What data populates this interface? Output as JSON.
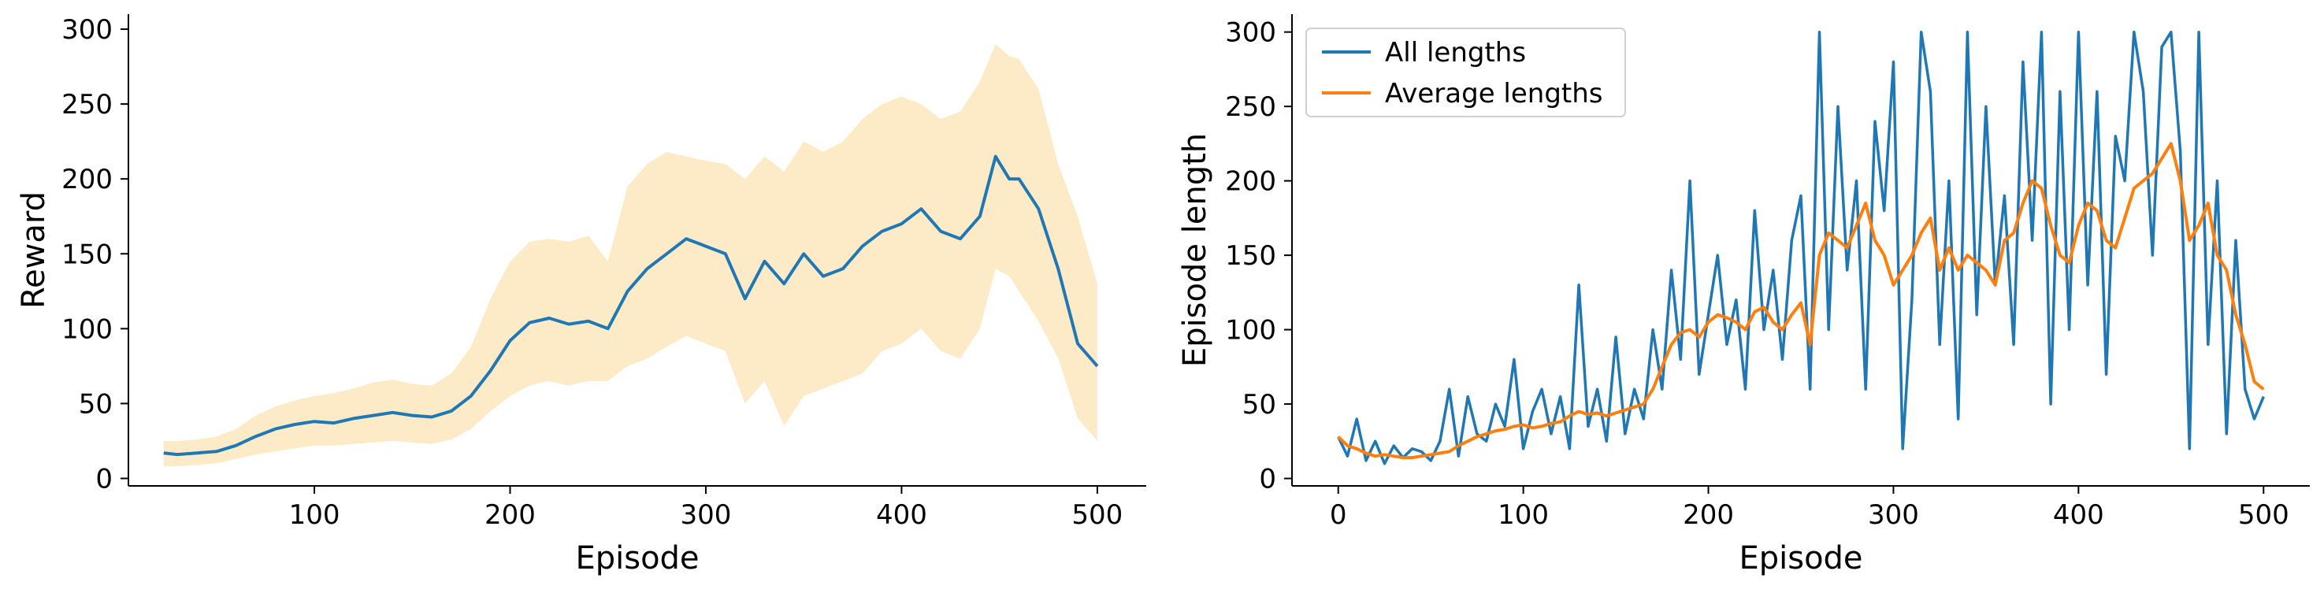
{
  "chart_data": [
    {
      "type": "line",
      "xlabel": "Episode",
      "ylabel": "Reward",
      "xlim": [
        5,
        525
      ],
      "ylim": [
        -5,
        310
      ],
      "xticks": [
        100,
        200,
        300,
        400,
        500
      ],
      "yticks": [
        0,
        50,
        100,
        150,
        200,
        250,
        300
      ],
      "grid": false,
      "colors": {
        "line": "#1f77b4",
        "band": "#fdebc8"
      },
      "x": [
        23,
        30,
        40,
        50,
        60,
        70,
        80,
        90,
        100,
        110,
        120,
        130,
        140,
        150,
        160,
        170,
        180,
        190,
        200,
        210,
        220,
        230,
        240,
        250,
        260,
        270,
        280,
        290,
        300,
        310,
        320,
        330,
        340,
        350,
        360,
        370,
        380,
        390,
        400,
        410,
        420,
        430,
        440,
        448,
        455,
        460,
        470,
        480,
        490,
        500
      ],
      "series": [
        {
          "kind": "mean",
          "values": [
            17,
            16,
            17,
            18,
            22,
            28,
            33,
            36,
            38,
            37,
            40,
            42,
            44,
            42,
            41,
            45,
            55,
            72,
            92,
            104,
            107,
            103,
            105,
            100,
            125,
            140,
            150,
            160,
            155,
            150,
            120,
            145,
            130,
            150,
            135,
            140,
            155,
            165,
            170,
            180,
            165,
            160,
            175,
            215,
            200,
            200,
            180,
            140,
            90,
            75
          ]
        },
        {
          "kind": "band_upper",
          "values": [
            25,
            25,
            26,
            28,
            33,
            42,
            48,
            52,
            55,
            57,
            60,
            64,
            66,
            63,
            62,
            70,
            88,
            120,
            145,
            158,
            160,
            158,
            162,
            145,
            195,
            210,
            218,
            215,
            212,
            210,
            200,
            215,
            205,
            225,
            218,
            225,
            240,
            250,
            255,
            250,
            240,
            245,
            265,
            290,
            282,
            280,
            260,
            210,
            175,
            130
          ]
        },
        {
          "kind": "band_lower",
          "values": [
            8,
            8,
            9,
            10,
            13,
            16,
            18,
            20,
            22,
            22,
            23,
            24,
            25,
            24,
            23,
            26,
            33,
            45,
            55,
            62,
            65,
            62,
            65,
            65,
            75,
            80,
            88,
            95,
            90,
            85,
            50,
            65,
            35,
            55,
            60,
            65,
            70,
            85,
            90,
            100,
            85,
            80,
            100,
            140,
            135,
            125,
            105,
            80,
            40,
            25
          ]
        }
      ]
    },
    {
      "type": "line",
      "xlabel": "Episode",
      "ylabel": "Episode length",
      "xlim": [
        -25,
        525
      ],
      "ylim": [
        -5,
        312
      ],
      "xticks": [
        0,
        100,
        200,
        300,
        400,
        500
      ],
      "yticks": [
        0,
        50,
        100,
        150,
        200,
        250,
        300
      ],
      "grid": false,
      "legend": "top-left",
      "x": [
        0,
        5,
        10,
        15,
        20,
        25,
        30,
        35,
        40,
        45,
        50,
        55,
        60,
        65,
        70,
        75,
        80,
        85,
        90,
        95,
        100,
        105,
        110,
        115,
        120,
        125,
        130,
        135,
        140,
        145,
        150,
        155,
        160,
        165,
        170,
        175,
        180,
        185,
        190,
        195,
        200,
        205,
        210,
        215,
        220,
        225,
        230,
        235,
        240,
        245,
        250,
        255,
        260,
        265,
        270,
        275,
        280,
        285,
        290,
        295,
        300,
        305,
        310,
        315,
        320,
        325,
        330,
        335,
        340,
        345,
        350,
        355,
        360,
        365,
        370,
        375,
        380,
        385,
        390,
        395,
        400,
        405,
        410,
        415,
        420,
        425,
        430,
        435,
        440,
        445,
        450,
        455,
        460,
        465,
        470,
        475,
        480,
        485,
        490,
        495,
        500
      ],
      "series": [
        {
          "name": "All lengths",
          "color": "#1f77b4",
          "values": [
            28,
            15,
            40,
            12,
            25,
            10,
            22,
            14,
            20,
            18,
            12,
            25,
            60,
            15,
            55,
            30,
            25,
            50,
            35,
            80,
            20,
            45,
            60,
            30,
            55,
            20,
            130,
            35,
            60,
            25,
            95,
            30,
            60,
            40,
            100,
            60,
            140,
            80,
            200,
            70,
            110,
            150,
            90,
            120,
            60,
            180,
            100,
            140,
            80,
            160,
            190,
            60,
            300,
            100,
            250,
            140,
            200,
            60,
            240,
            180,
            280,
            20,
            120,
            300,
            260,
            90,
            200,
            40,
            300,
            110,
            250,
            130,
            190,
            90,
            280,
            160,
            300,
            50,
            260,
            100,
            300,
            130,
            260,
            70,
            230,
            200,
            300,
            260,
            150,
            290,
            300,
            220,
            20,
            300,
            90,
            200,
            30,
            160,
            60,
            40,
            55
          ]
        },
        {
          "name": "Average lengths",
          "color": "#ff7f0e",
          "values": [
            28,
            22,
            20,
            17,
            15,
            16,
            15,
            14,
            14,
            15,
            16,
            17,
            18,
            22,
            25,
            28,
            30,
            32,
            33,
            35,
            36,
            34,
            35,
            37,
            38,
            42,
            45,
            43,
            44,
            42,
            44,
            46,
            48,
            50,
            60,
            75,
            90,
            98,
            100,
            95,
            105,
            110,
            108,
            105,
            100,
            112,
            115,
            105,
            100,
            110,
            118,
            90,
            150,
            165,
            160,
            155,
            170,
            185,
            160,
            150,
            130,
            140,
            150,
            165,
            175,
            140,
            155,
            140,
            150,
            145,
            140,
            130,
            160,
            165,
            185,
            200,
            195,
            170,
            150,
            145,
            170,
            185,
            180,
            160,
            155,
            175,
            195,
            200,
            205,
            215,
            225,
            200,
            160,
            170,
            185,
            150,
            140,
            110,
            90,
            65,
            60
          ]
        }
      ]
    }
  ]
}
